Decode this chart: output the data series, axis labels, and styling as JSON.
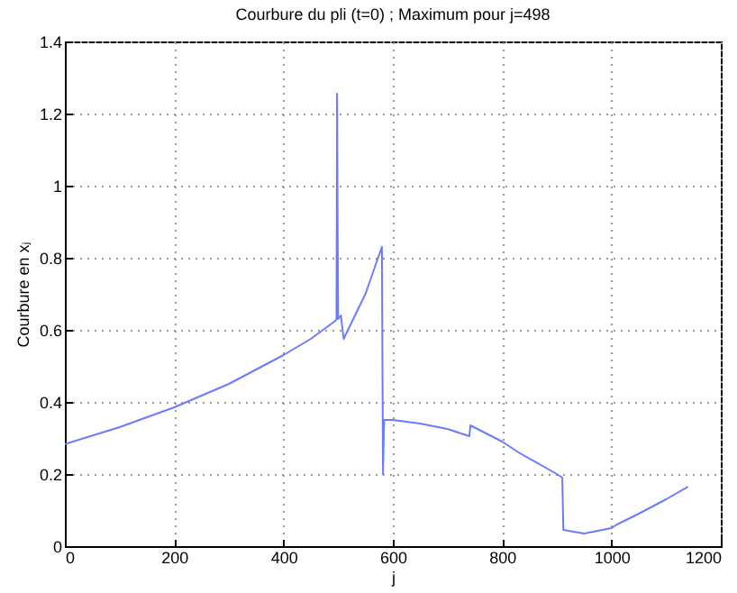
{
  "chart_data": {
    "type": "line",
    "title": "Courbure du pli (t=0) ; Maximum pour j=498",
    "xlabel": "j",
    "ylabel": "Courbure en xⱼ",
    "x": [
      0,
      100,
      200,
      300,
      400,
      450,
      495,
      497,
      498,
      499,
      500,
      505,
      510,
      550,
      580,
      582,
      584,
      600,
      650,
      700,
      740,
      742,
      800,
      830,
      900,
      910,
      912,
      950,
      1000,
      1010,
      1050,
      1100,
      1140
    ],
    "series": [
      {
        "color": "#6b7bff",
        "values": [
          0.283,
          0.33,
          0.385,
          0.45,
          0.53,
          0.575,
          0.625,
          0.63,
          1.255,
          0.9,
          0.63,
          0.64,
          0.575,
          0.7,
          0.83,
          0.2,
          0.35,
          0.35,
          0.34,
          0.325,
          0.305,
          0.335,
          0.29,
          0.26,
          0.2,
          0.19,
          0.045,
          0.035,
          0.05,
          0.06,
          0.09,
          0.13,
          0.165
        ]
      }
    ],
    "xlim": [
      0,
      1200
    ],
    "xticks": [
      0,
      200,
      400,
      600,
      800,
      1000,
      1200
    ],
    "ylim": [
      0,
      1.4
    ],
    "yticks": [
      0,
      0.2,
      0.4,
      0.6,
      0.8,
      1,
      1.2,
      1.4
    ],
    "grid": true,
    "legend": false,
    "marker": "none",
    "line_style": "solid"
  }
}
